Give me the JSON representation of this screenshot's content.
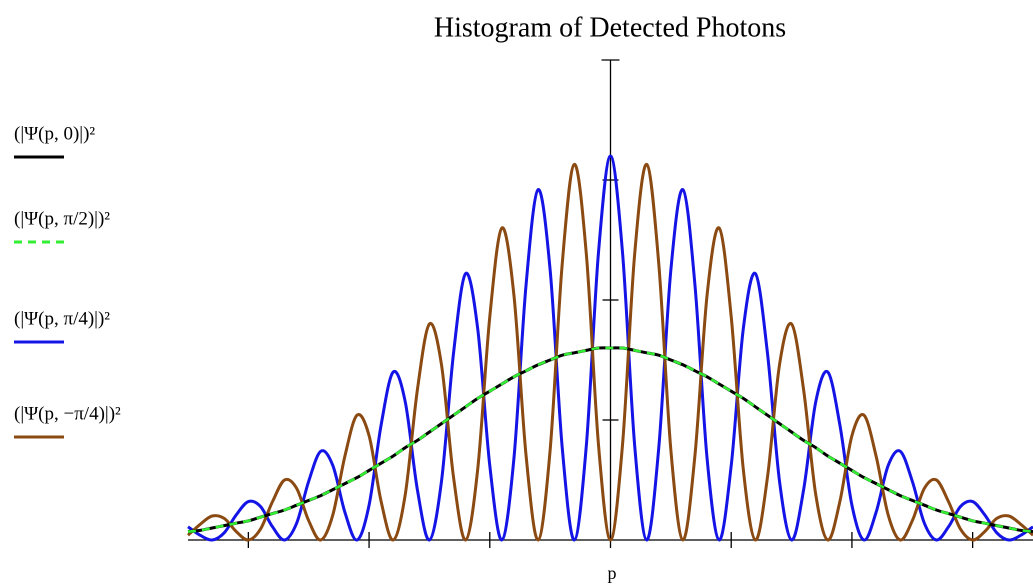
{
  "chart_data": {
    "type": "line",
    "title": "Histogram of Detected Photons",
    "xlabel": "p",
    "xlim": [
      -3.5,
      3.5
    ],
    "ylim": [
      0,
      4
    ],
    "xticks": [
      -3,
      -2,
      -1,
      0,
      1,
      2,
      3
    ],
    "yticks": [
      1,
      2,
      3
    ],
    "x": [
      -3.5,
      -3.4,
      -3.3,
      -3.2,
      -3.1,
      -3.0,
      -2.9,
      -2.8,
      -2.7,
      -2.6,
      -2.5,
      -2.4,
      -2.3,
      -2.2,
      -2.1,
      -2.0,
      -1.9,
      -1.8,
      -1.7,
      -1.6,
      -1.5,
      -1.4,
      -1.3,
      -1.2,
      -1.1,
      -1.0,
      -0.9,
      -0.8,
      -0.7,
      -0.6,
      -0.5,
      -0.4,
      -0.3,
      -0.2,
      -0.1,
      0,
      0.1,
      0.2,
      0.3,
      0.4,
      0.5,
      0.6,
      0.7,
      0.8,
      0.9,
      1.0,
      1.1,
      1.2,
      1.3,
      1.4,
      1.5,
      1.6,
      1.7,
      1.8,
      1.9,
      2.0,
      2.1,
      2.2,
      2.3,
      2.4,
      2.5,
      2.6,
      2.7,
      2.8,
      2.9,
      3.0,
      3.1,
      3.2,
      3.3,
      3.4,
      3.5
    ],
    "series": [
      {
        "name": "(|Ψ(p, 0)|)²",
        "color": "#000000",
        "dash": false,
        "values": [
          0.07,
          0.08,
          0.1,
          0.12,
          0.14,
          0.16,
          0.19,
          0.22,
          0.25,
          0.29,
          0.33,
          0.37,
          0.42,
          0.47,
          0.52,
          0.58,
          0.64,
          0.7,
          0.77,
          0.83,
          0.9,
          0.97,
          1.04,
          1.11,
          1.18,
          1.24,
          1.3,
          1.36,
          1.41,
          1.46,
          1.5,
          1.54,
          1.56,
          1.58,
          1.6,
          1.6,
          1.6,
          1.58,
          1.56,
          1.54,
          1.5,
          1.46,
          1.41,
          1.36,
          1.3,
          1.24,
          1.18,
          1.11,
          1.04,
          0.97,
          0.9,
          0.83,
          0.77,
          0.7,
          0.64,
          0.58,
          0.52,
          0.47,
          0.42,
          0.37,
          0.33,
          0.29,
          0.25,
          0.22,
          0.19,
          0.16,
          0.14,
          0.12,
          0.1,
          0.08,
          0.07
        ]
      },
      {
        "name": "(|Ψ(p, π/2)|)²",
        "color": "#33ee33",
        "dash": true,
        "values": [
          0.07,
          0.08,
          0.1,
          0.12,
          0.14,
          0.16,
          0.19,
          0.22,
          0.25,
          0.29,
          0.33,
          0.37,
          0.42,
          0.47,
          0.52,
          0.58,
          0.64,
          0.7,
          0.77,
          0.83,
          0.9,
          0.97,
          1.04,
          1.11,
          1.18,
          1.24,
          1.3,
          1.36,
          1.41,
          1.46,
          1.5,
          1.54,
          1.56,
          1.58,
          1.6,
          1.6,
          1.6,
          1.58,
          1.56,
          1.54,
          1.5,
          1.46,
          1.41,
          1.36,
          1.3,
          1.24,
          1.18,
          1.11,
          1.04,
          0.97,
          0.9,
          0.83,
          0.77,
          0.7,
          0.64,
          0.58,
          0.52,
          0.47,
          0.42,
          0.37,
          0.33,
          0.29,
          0.25,
          0.22,
          0.19,
          0.16,
          0.14,
          0.12,
          0.1,
          0.08,
          0.07
        ]
      },
      {
        "name": "(|Ψ(p, π/4)|)²",
        "color": "#1414e6",
        "dash": false,
        "values": [
          0.11,
          0.04,
          0,
          0.06,
          0.21,
          0.32,
          0.28,
          0.11,
          0,
          0.14,
          0.49,
          0.74,
          0.62,
          0.23,
          0,
          0.29,
          0.96,
          1.4,
          1.15,
          0.42,
          0,
          0.49,
          1.56,
          2.22,
          1.76,
          0.62,
          0,
          0.68,
          2.12,
          2.92,
          2.25,
          0.77,
          0,
          0.79,
          2.39,
          3.2,
          2.39,
          0.79,
          0,
          0.77,
          2.25,
          2.92,
          2.12,
          0.68,
          0,
          0.62,
          1.76,
          2.22,
          1.56,
          0.49,
          0,
          0.42,
          1.15,
          1.4,
          0.96,
          0.29,
          0,
          0.23,
          0.62,
          0.74,
          0.49,
          0.14,
          0,
          0.11,
          0.28,
          0.32,
          0.21,
          0.06,
          0,
          0.04,
          0.11
        ]
      },
      {
        "name": "(|Ψ(p, −π/4)|)²",
        "color": "#8b4a12",
        "dash": false,
        "values": [
          0.04,
          0.13,
          0.2,
          0.18,
          0.07,
          0,
          0.09,
          0.32,
          0.5,
          0.43,
          0.16,
          0,
          0.21,
          0.7,
          1.04,
          0.87,
          0.32,
          0,
          0.38,
          1.25,
          1.8,
          1.46,
          0.52,
          0,
          0.59,
          1.86,
          2.6,
          2.04,
          0.71,
          0,
          0.75,
          2.3,
          3.13,
          2.38,
          0.8,
          0,
          0.8,
          2.38,
          3.13,
          2.3,
          0.75,
          0,
          0.71,
          2.04,
          2.6,
          1.86,
          0.59,
          0,
          0.52,
          1.46,
          1.8,
          1.25,
          0.38,
          0,
          0.32,
          0.87,
          1.04,
          0.7,
          0.21,
          0,
          0.16,
          0.43,
          0.5,
          0.32,
          0.09,
          0,
          0.07,
          0.18,
          0.2,
          0.13,
          0.04
        ]
      }
    ]
  }
}
